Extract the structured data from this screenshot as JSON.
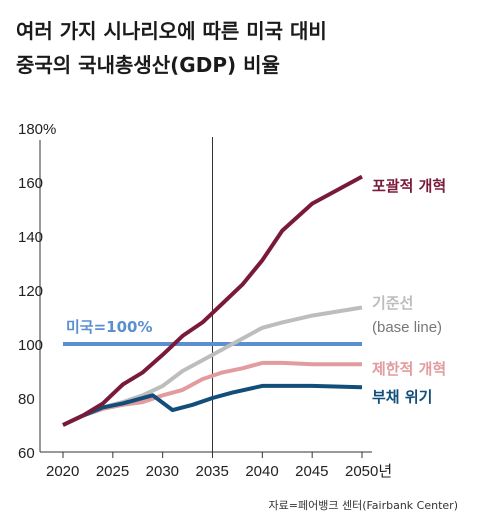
{
  "title_lines": [
    "여러 가지 시나리오에 따른 미국 대비",
    "중국의 국내총생산(GDP) 비율"
  ],
  "source": "자료=페어뱅크 센터(Fairbank Center)",
  "colors": {
    "reform": "#7a1a3a",
    "baseline": "#bdbdbd",
    "limited": "#e29b9e",
    "debt": "#114e7a",
    "us": "#5b8fd0",
    "axis": "#333333",
    "grid": "#cccccc"
  },
  "chart_data": {
    "type": "line",
    "title": "여러 가지 시나리오에 따른 미국 대비 중국의 국내총생산(GDP) 비율",
    "xlabel": "",
    "ylabel": "",
    "xlim": [
      2020,
      2050
    ],
    "ylim": [
      60,
      180
    ],
    "x_ticks": [
      2020,
      2025,
      2030,
      2035,
      2040,
      2045,
      2050
    ],
    "x_tick_labels": [
      "2020",
      "2025",
      "2030",
      "2035",
      "2040",
      "2045",
      "2050년"
    ],
    "y_ticks": [
      60,
      80,
      100,
      120,
      140,
      160,
      180
    ],
    "y_tick_labels": [
      "60",
      "80",
      "100",
      "120",
      "140",
      "160",
      "180%"
    ],
    "vertical_marker_x": 2035,
    "reference_line": {
      "label": "미국=100%",
      "value": 100
    },
    "series": [
      {
        "name": "포괄적 개혁",
        "key": "reform",
        "points": [
          [
            2020,
            70
          ],
          [
            2022,
            73.5
          ],
          [
            2024,
            78
          ],
          [
            2026,
            85
          ],
          [
            2028,
            89.5
          ],
          [
            2030,
            96
          ],
          [
            2032,
            103
          ],
          [
            2034,
            108
          ],
          [
            2036,
            115
          ],
          [
            2038,
            122
          ],
          [
            2040,
            131
          ],
          [
            2042,
            142
          ],
          [
            2045,
            152
          ],
          [
            2050,
            162
          ]
        ]
      },
      {
        "name": "기준선",
        "sublabel": "(base line)",
        "key": "baseline",
        "points": [
          [
            2020,
            70
          ],
          [
            2022,
            73.5
          ],
          [
            2024,
            76.5
          ],
          [
            2026,
            78.5
          ],
          [
            2028,
            81
          ],
          [
            2030,
            84.5
          ],
          [
            2032,
            90
          ],
          [
            2034,
            94
          ],
          [
            2036,
            98
          ],
          [
            2038,
            102
          ],
          [
            2040,
            106
          ],
          [
            2042,
            108
          ],
          [
            2045,
            110.5
          ],
          [
            2050,
            113.5
          ]
        ]
      },
      {
        "name": "제한적 개혁",
        "key": "limited",
        "points": [
          [
            2020,
            70
          ],
          [
            2022,
            73.5
          ],
          [
            2024,
            76
          ],
          [
            2026,
            77.5
          ],
          [
            2028,
            78.5
          ],
          [
            2030,
            81
          ],
          [
            2032,
            83
          ],
          [
            2034,
            87
          ],
          [
            2036,
            89.5
          ],
          [
            2038,
            91
          ],
          [
            2040,
            93
          ],
          [
            2042,
            93
          ],
          [
            2045,
            92.5
          ],
          [
            2050,
            92.5
          ]
        ]
      },
      {
        "name": "부채 위기",
        "key": "debt",
        "points": [
          [
            2020,
            70
          ],
          [
            2022,
            73.5
          ],
          [
            2024,
            76.5
          ],
          [
            2026,
            78
          ],
          [
            2029,
            81
          ],
          [
            2031,
            75.5
          ],
          [
            2033,
            77.5
          ],
          [
            2035,
            80
          ],
          [
            2037,
            82
          ],
          [
            2040,
            84.5
          ],
          [
            2045,
            84.5
          ],
          [
            2050,
            84
          ]
        ]
      }
    ]
  }
}
